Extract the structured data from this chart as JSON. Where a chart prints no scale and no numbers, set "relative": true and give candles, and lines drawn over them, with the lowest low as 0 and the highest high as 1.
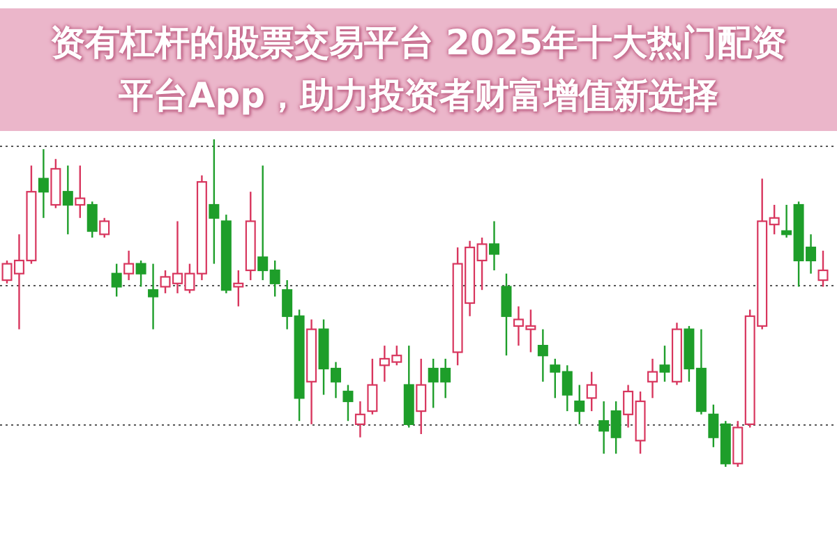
{
  "chart_data": {
    "type": "candlestick",
    "title": "资有杠杆的股票交易平台 2025年十大热门配资平台App，助力投资者财富增值新选择",
    "relative": true,
    "grid": true,
    "categories": [
      null,
      null,
      null,
      null,
      null,
      null,
      null,
      null,
      null,
      null,
      null,
      null,
      null,
      null,
      null,
      null,
      null,
      null,
      null,
      null,
      null,
      null,
      null,
      null,
      null,
      null,
      null,
      null,
      null,
      null,
      null,
      null,
      null,
      null,
      null,
      null,
      null,
      null,
      null,
      null,
      null,
      null,
      null,
      null,
      null,
      null,
      null,
      null,
      null,
      null,
      null,
      null,
      null,
      null,
      null,
      null,
      null,
      null,
      null,
      null,
      null,
      null,
      null,
      null,
      null,
      null,
      null,
      null
    ],
    "ohlc": [
      [
        0.57,
        0.63,
        0.56,
        0.62
      ],
      [
        0.59,
        0.71,
        0.42,
        0.63
      ],
      [
        0.63,
        0.92,
        0.62,
        0.84
      ],
      [
        0.88,
        0.97,
        0.76,
        0.84
      ],
      [
        0.8,
        0.94,
        0.79,
        0.91
      ],
      [
        0.84,
        0.92,
        0.71,
        0.8
      ],
      [
        0.8,
        0.92,
        0.76,
        0.82
      ],
      [
        0.8,
        0.81,
        0.7,
        0.72
      ],
      [
        0.71,
        0.76,
        0.7,
        0.75
      ],
      [
        0.59,
        0.62,
        0.52,
        0.55
      ],
      [
        0.59,
        0.66,
        0.57,
        0.62
      ],
      [
        0.62,
        0.63,
        0.55,
        0.59
      ],
      [
        0.54,
        0.62,
        0.42,
        0.52
      ],
      [
        0.55,
        0.6,
        0.53,
        0.58
      ],
      [
        0.56,
        0.75,
        0.53,
        0.59
      ],
      [
        0.54,
        0.62,
        0.53,
        0.59
      ],
      [
        0.59,
        0.89,
        0.57,
        0.87
      ],
      [
        0.8,
        1.0,
        0.62,
        0.76
      ],
      [
        0.75,
        0.77,
        0.53,
        0.54
      ],
      [
        0.55,
        0.6,
        0.49,
        0.56
      ],
      [
        0.6,
        0.84,
        0.57,
        0.75
      ],
      [
        0.64,
        0.92,
        0.57,
        0.6
      ],
      [
        0.6,
        0.63,
        0.52,
        0.56
      ],
      [
        0.54,
        0.57,
        0.42,
        0.46
      ],
      [
        0.46,
        0.48,
        0.14,
        0.21
      ],
      [
        0.26,
        0.45,
        0.13,
        0.42
      ],
      [
        0.42,
        0.45,
        0.22,
        0.3
      ],
      [
        0.3,
        0.32,
        0.21,
        0.26
      ],
      [
        0.23,
        0.25,
        0.14,
        0.2
      ],
      [
        0.13,
        0.2,
        0.09,
        0.16
      ],
      [
        0.17,
        0.33,
        0.16,
        0.25
      ],
      [
        0.31,
        0.37,
        0.26,
        0.33
      ],
      [
        0.32,
        0.37,
        0.31,
        0.34
      ],
      [
        0.25,
        0.37,
        0.12,
        0.13
      ],
      [
        0.17,
        0.33,
        0.1,
        0.25
      ],
      [
        0.3,
        0.33,
        0.18,
        0.26
      ],
      [
        0.3,
        0.33,
        0.21,
        0.26
      ],
      [
        0.35,
        0.67,
        0.31,
        0.62
      ],
      [
        0.5,
        0.69,
        0.46,
        0.67
      ],
      [
        0.63,
        0.7,
        0.54,
        0.68
      ],
      [
        0.68,
        0.75,
        0.6,
        0.65
      ],
      [
        0.55,
        0.59,
        0.34,
        0.46
      ],
      [
        0.43,
        0.49,
        0.37,
        0.45
      ],
      [
        0.42,
        0.48,
        0.35,
        0.43
      ],
      [
        0.37,
        0.42,
        0.26,
        0.34
      ],
      [
        0.31,
        0.33,
        0.21,
        0.29
      ],
      [
        0.29,
        0.31,
        0.17,
        0.22
      ],
      [
        0.2,
        0.25,
        0.13,
        0.17
      ],
      [
        0.21,
        0.29,
        0.17,
        0.25
      ],
      [
        0.14,
        0.2,
        0.04,
        0.11
      ],
      [
        0.17,
        0.2,
        0.04,
        0.09
      ],
      [
        0.16,
        0.25,
        0.12,
        0.23
      ],
      [
        0.08,
        0.23,
        0.04,
        0.2
      ],
      [
        0.26,
        0.33,
        0.21,
        0.29
      ],
      [
        0.31,
        0.37,
        0.26,
        0.29
      ],
      [
        0.26,
        0.44,
        0.25,
        0.42
      ],
      [
        0.42,
        0.43,
        0.26,
        0.3
      ],
      [
        0.3,
        0.42,
        0.16,
        0.17
      ],
      [
        0.16,
        0.19,
        0.06,
        0.09
      ],
      [
        0.13,
        0.14,
        0,
        0.01
      ],
      [
        0.01,
        0.14,
        0,
        0.12
      ],
      [
        0.13,
        0.48,
        0.12,
        0.46
      ],
      [
        0.43,
        0.88,
        0.42,
        0.75
      ],
      [
        0.74,
        0.8,
        0.71,
        0.76
      ],
      [
        0.72,
        0.8,
        0.7,
        0.71
      ],
      [
        0.8,
        0.81,
        0.55,
        0.63
      ],
      [
        0.67,
        0.71,
        0.59,
        0.63
      ],
      [
        0.57,
        0.66,
        0.55,
        0.6
      ]
    ]
  }
}
